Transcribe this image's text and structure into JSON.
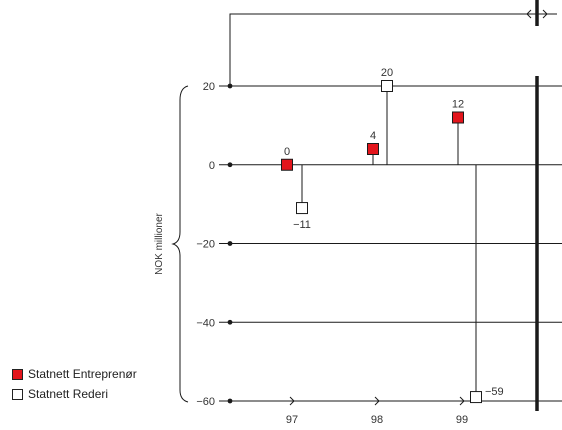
{
  "chart_data": {
    "type": "scatter",
    "title": "",
    "xlabel": "",
    "ylabel": "NOK millioner",
    "ylim": [
      -60,
      20
    ],
    "yticks": [
      "20",
      "0",
      "−20",
      "−40",
      "−60"
    ],
    "ytick_values": [
      20,
      0,
      -20,
      -40,
      -60
    ],
    "xticks": [
      "97",
      "98",
      "99"
    ],
    "xtick_values": [
      97,
      98,
      99
    ],
    "grid": true,
    "legend_position": "bottom-left",
    "series": [
      {
        "name": "Statnett Entreprenør",
        "color": "#e3151c",
        "points": [
          {
            "x": 97,
            "y": 0,
            "label": "0"
          },
          {
            "x": 98,
            "y": 4,
            "label": "4"
          },
          {
            "x": 99,
            "y": 12,
            "label": "12"
          }
        ]
      },
      {
        "name": "Statnett Rederi",
        "color": "#ffffff",
        "points": [
          {
            "x": 97,
            "y": -11,
            "label": "−11"
          },
          {
            "x": 98,
            "y": 20,
            "label": "20"
          },
          {
            "x": 99,
            "y": -59,
            "label": "−59"
          }
        ]
      }
    ]
  }
}
